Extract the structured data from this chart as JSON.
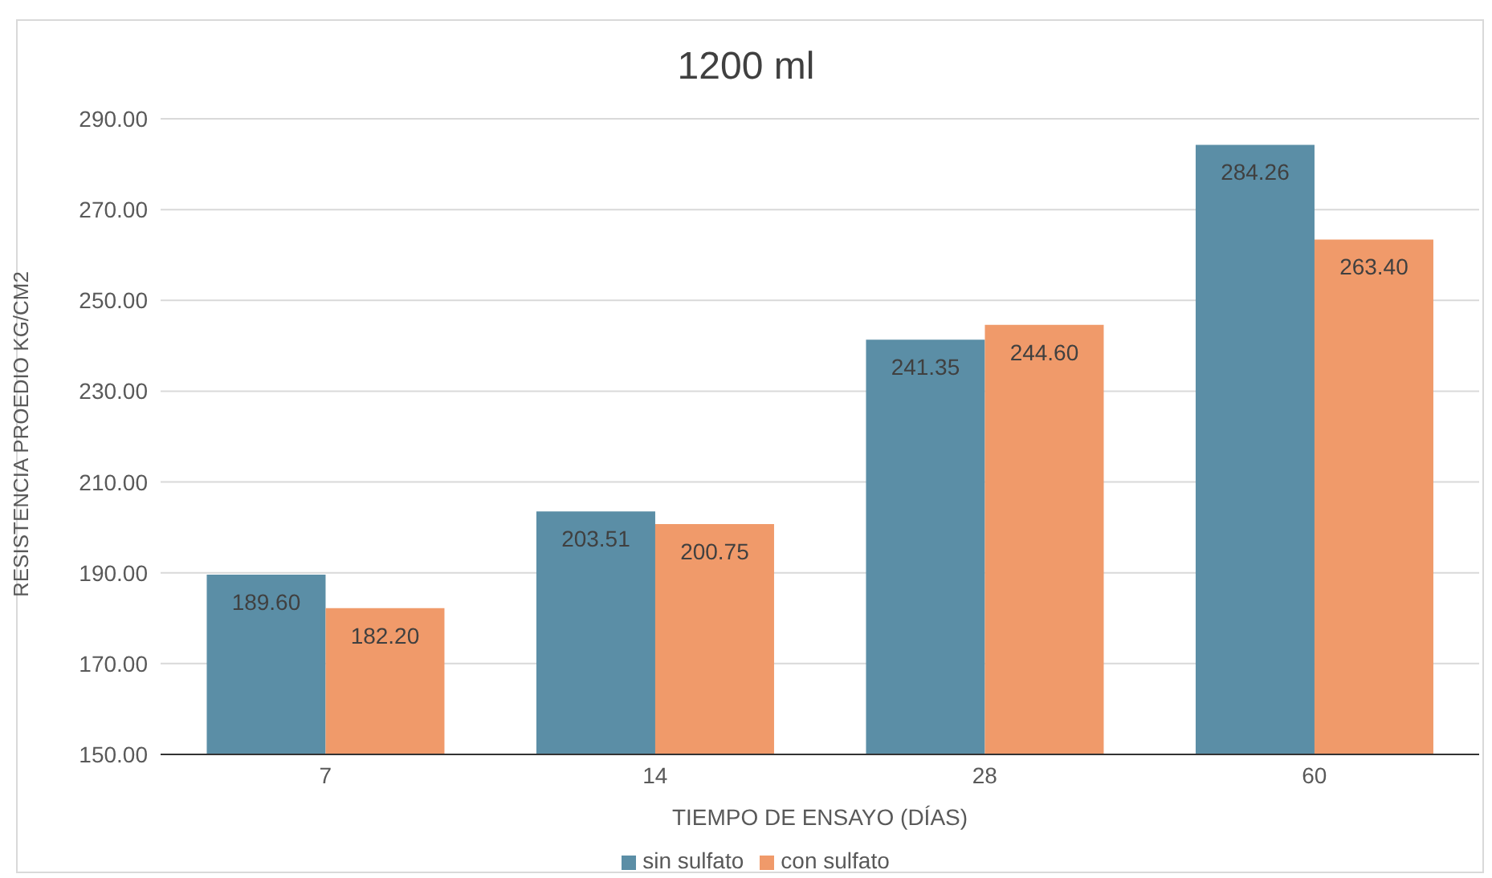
{
  "chart_data": {
    "type": "bar",
    "title": "1200 ml",
    "xlabel": "TIEMPO DE ENSAYO (DÍAS)",
    "ylabel": "RESISTENCIA PROEDIO KG/CM2",
    "categories": [
      "7",
      "14",
      "28",
      "60"
    ],
    "series": [
      {
        "name": "sin sulfato",
        "color": "#5b8ea6",
        "values": [
          189.6,
          203.51,
          241.35,
          284.26
        ],
        "value_labels": [
          "189.60",
          "203.51",
          "241.35",
          "284.26"
        ]
      },
      {
        "name": "con sulfato",
        "color": "#f09a6a",
        "values": [
          182.2,
          200.75,
          244.6,
          263.4
        ],
        "value_labels": [
          "182.20",
          "200.75",
          "244.60",
          "263.40"
        ]
      }
    ],
    "ylim": [
      150,
      290
    ],
    "yticks": [
      {
        "value": 150,
        "label": "150.00"
      },
      {
        "value": 170,
        "label": "170.00"
      },
      {
        "value": 190,
        "label": "190.00"
      },
      {
        "value": 210,
        "label": "210.00"
      },
      {
        "value": 230,
        "label": "230.00"
      },
      {
        "value": 250,
        "label": "250.00"
      },
      {
        "value": 270,
        "label": "270.00"
      },
      {
        "value": 290,
        "label": "290.00"
      }
    ],
    "grid": "y",
    "legend": "bottom"
  }
}
